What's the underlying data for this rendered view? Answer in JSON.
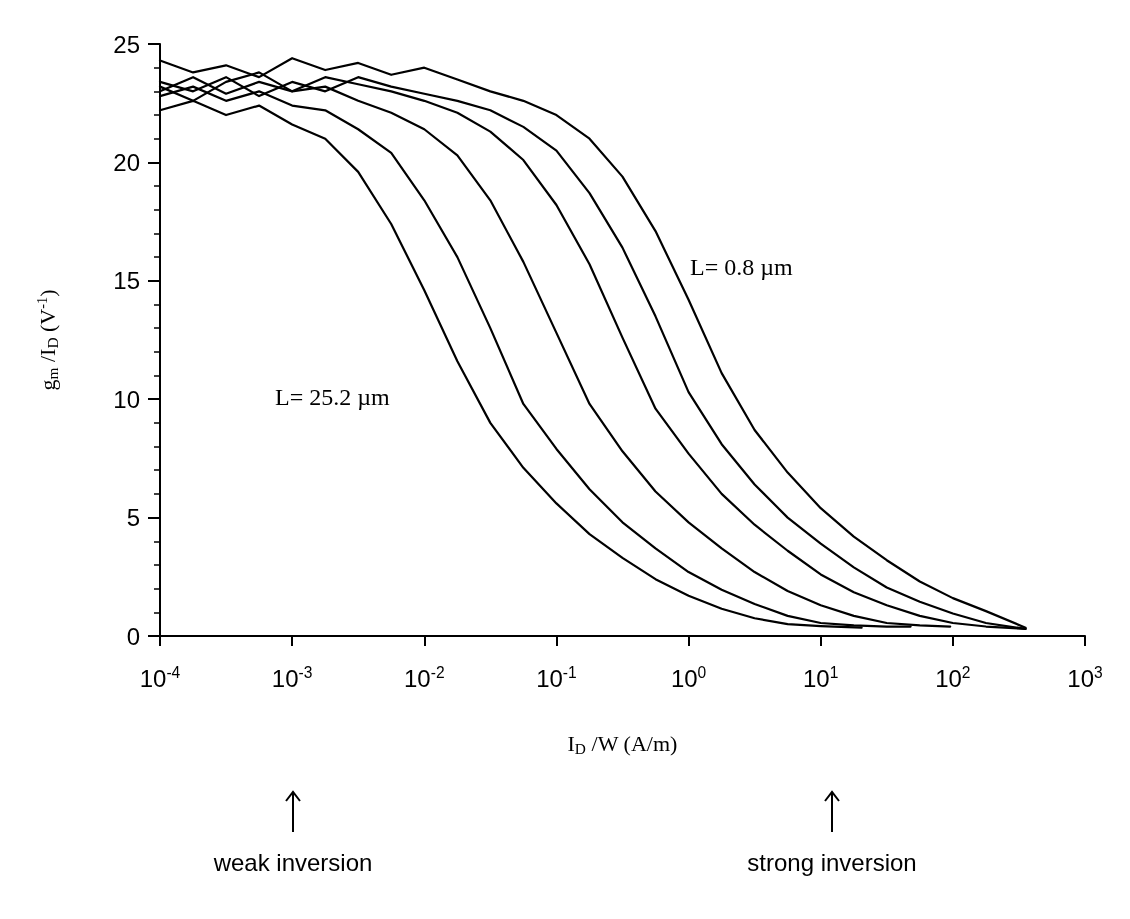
{
  "chart_data": {
    "type": "line",
    "xlabel": "I$_{D}$ /W (A/m)",
    "ylabel": "g$_{m}$ /I$_{D}$ (V$^{-1}$)",
    "log": "x",
    "grid": false,
    "marker": "none",
    "line_style": "solid",
    "xlim": [
      0.0001,
      1000
    ],
    "ylim": [
      0,
      25
    ],
    "xticks": [
      {
        "value": 0.0001,
        "label": "10$^{-4}$"
      },
      {
        "value": 0.001,
        "label": "10$^{-3}$"
      },
      {
        "value": 0.01,
        "label": "10$^{-2}$"
      },
      {
        "value": 0.1,
        "label": "10$^{-1}$"
      },
      {
        "value": 1,
        "label": "10$^{0}$"
      },
      {
        "value": 10,
        "label": "10$^{1}$"
      },
      {
        "value": 100,
        "label": "10$^{2}$"
      },
      {
        "value": 1000,
        "label": "10$^{3}$"
      }
    ],
    "yticks": [
      0,
      5,
      10,
      15,
      20,
      25
    ],
    "annotations": [
      "L= 0.8 µm",
      "L= 25.2 µm",
      "weak inversion",
      "strong inversion"
    ],
    "series": [
      {
        "color": "#000000",
        "x": [
          0.0001,
          0.000178,
          0.000316,
          0.000562,
          0.001,
          0.00178,
          0.00316,
          0.00562,
          0.01,
          0.0178,
          0.0316,
          0.0562,
          0.1,
          0.178,
          0.316,
          0.562,
          1,
          1.78,
          3.16,
          5.62,
          10,
          20.4
        ],
        "values": [
          22.2,
          22.6,
          22.0,
          22.4,
          21.6,
          21.0,
          19.6,
          17.4,
          14.6,
          11.6,
          9.0,
          7.1,
          5.6,
          4.3,
          3.3,
          2.4,
          1.7,
          1.15,
          0.75,
          0.5,
          0.42,
          0.35
        ]
      },
      {
        "color": "#000000",
        "x": [
          0.0001,
          0.000178,
          0.000316,
          0.000562,
          0.001,
          0.00178,
          0.00316,
          0.00562,
          0.01,
          0.0178,
          0.0316,
          0.0562,
          0.1,
          0.178,
          0.316,
          0.562,
          1,
          1.78,
          3.16,
          5.62,
          10,
          17.8,
          31.6,
          47.9
        ],
        "values": [
          22.8,
          23.2,
          22.6,
          23.0,
          22.4,
          22.2,
          21.4,
          20.4,
          18.4,
          16.0,
          13.0,
          9.8,
          7.9,
          6.2,
          4.8,
          3.7,
          2.7,
          1.95,
          1.35,
          0.85,
          0.55,
          0.45,
          0.4,
          0.4
        ]
      },
      {
        "color": "#000000",
        "x": [
          0.0001,
          0.000178,
          0.000316,
          0.000562,
          0.001,
          0.00178,
          0.00316,
          0.00562,
          0.01,
          0.0178,
          0.0316,
          0.0562,
          0.1,
          0.178,
          0.316,
          0.562,
          1,
          1.78,
          3.16,
          5.62,
          10,
          17.8,
          31.6,
          56.2,
          95.5
        ],
        "values": [
          23.0,
          23.6,
          22.9,
          23.4,
          23.0,
          23.2,
          22.6,
          22.1,
          21.4,
          20.3,
          18.4,
          15.8,
          12.8,
          9.8,
          7.8,
          6.1,
          4.8,
          3.7,
          2.7,
          1.9,
          1.3,
          0.85,
          0.55,
          0.45,
          0.4
        ]
      },
      {
        "color": "#000000",
        "x": [
          0.0001,
          0.000178,
          0.000316,
          0.000562,
          0.001,
          0.00178,
          0.00316,
          0.00562,
          0.01,
          0.0178,
          0.0316,
          0.0562,
          0.1,
          0.178,
          0.316,
          0.562,
          1,
          1.78,
          3.16,
          5.62,
          10,
          17.8,
          31.6,
          56.2,
          100,
          178,
          355
        ],
        "values": [
          23.2,
          22.6,
          23.4,
          23.8,
          23.0,
          23.6,
          23.3,
          23.0,
          22.6,
          22.1,
          21.3,
          20.1,
          18.2,
          15.7,
          12.6,
          9.6,
          7.7,
          6.0,
          4.7,
          3.6,
          2.6,
          1.85,
          1.3,
          0.85,
          0.55,
          0.4,
          0.3
        ]
      },
      {
        "color": "#000000",
        "x": [
          0.0001,
          0.000178,
          0.000316,
          0.000562,
          0.001,
          0.00178,
          0.00316,
          0.00562,
          0.01,
          0.0178,
          0.0316,
          0.0562,
          0.1,
          0.178,
          0.316,
          0.562,
          1,
          1.78,
          3.16,
          5.62,
          10,
          17.8,
          31.6,
          56.2,
          100,
          178,
          355
        ],
        "values": [
          23.4,
          23.0,
          23.6,
          22.8,
          23.4,
          23.0,
          23.6,
          23.2,
          22.9,
          22.6,
          22.2,
          21.5,
          20.5,
          18.7,
          16.4,
          13.5,
          10.3,
          8.1,
          6.4,
          5.0,
          3.9,
          2.9,
          2.05,
          1.45,
          0.95,
          0.55,
          0.3
        ]
      },
      {
        "color": "#000000",
        "x": [
          0.0001,
          0.000178,
          0.000316,
          0.000562,
          0.001,
          0.00178,
          0.00316,
          0.00562,
          0.01,
          0.0178,
          0.0316,
          0.0562,
          0.1,
          0.178,
          0.316,
          0.562,
          1,
          1.78,
          3.16,
          5.62,
          10,
          17.8,
          31.6,
          56.2,
          100,
          178,
          355
        ],
        "values": [
          24.3,
          23.8,
          24.1,
          23.6,
          24.4,
          23.9,
          24.2,
          23.7,
          24.0,
          23.5,
          23.0,
          22.6,
          22.0,
          21.0,
          19.4,
          17.1,
          14.2,
          11.1,
          8.7,
          6.9,
          5.4,
          4.2,
          3.2,
          2.3,
          1.6,
          1.05,
          0.35
        ]
      }
    ]
  }
}
